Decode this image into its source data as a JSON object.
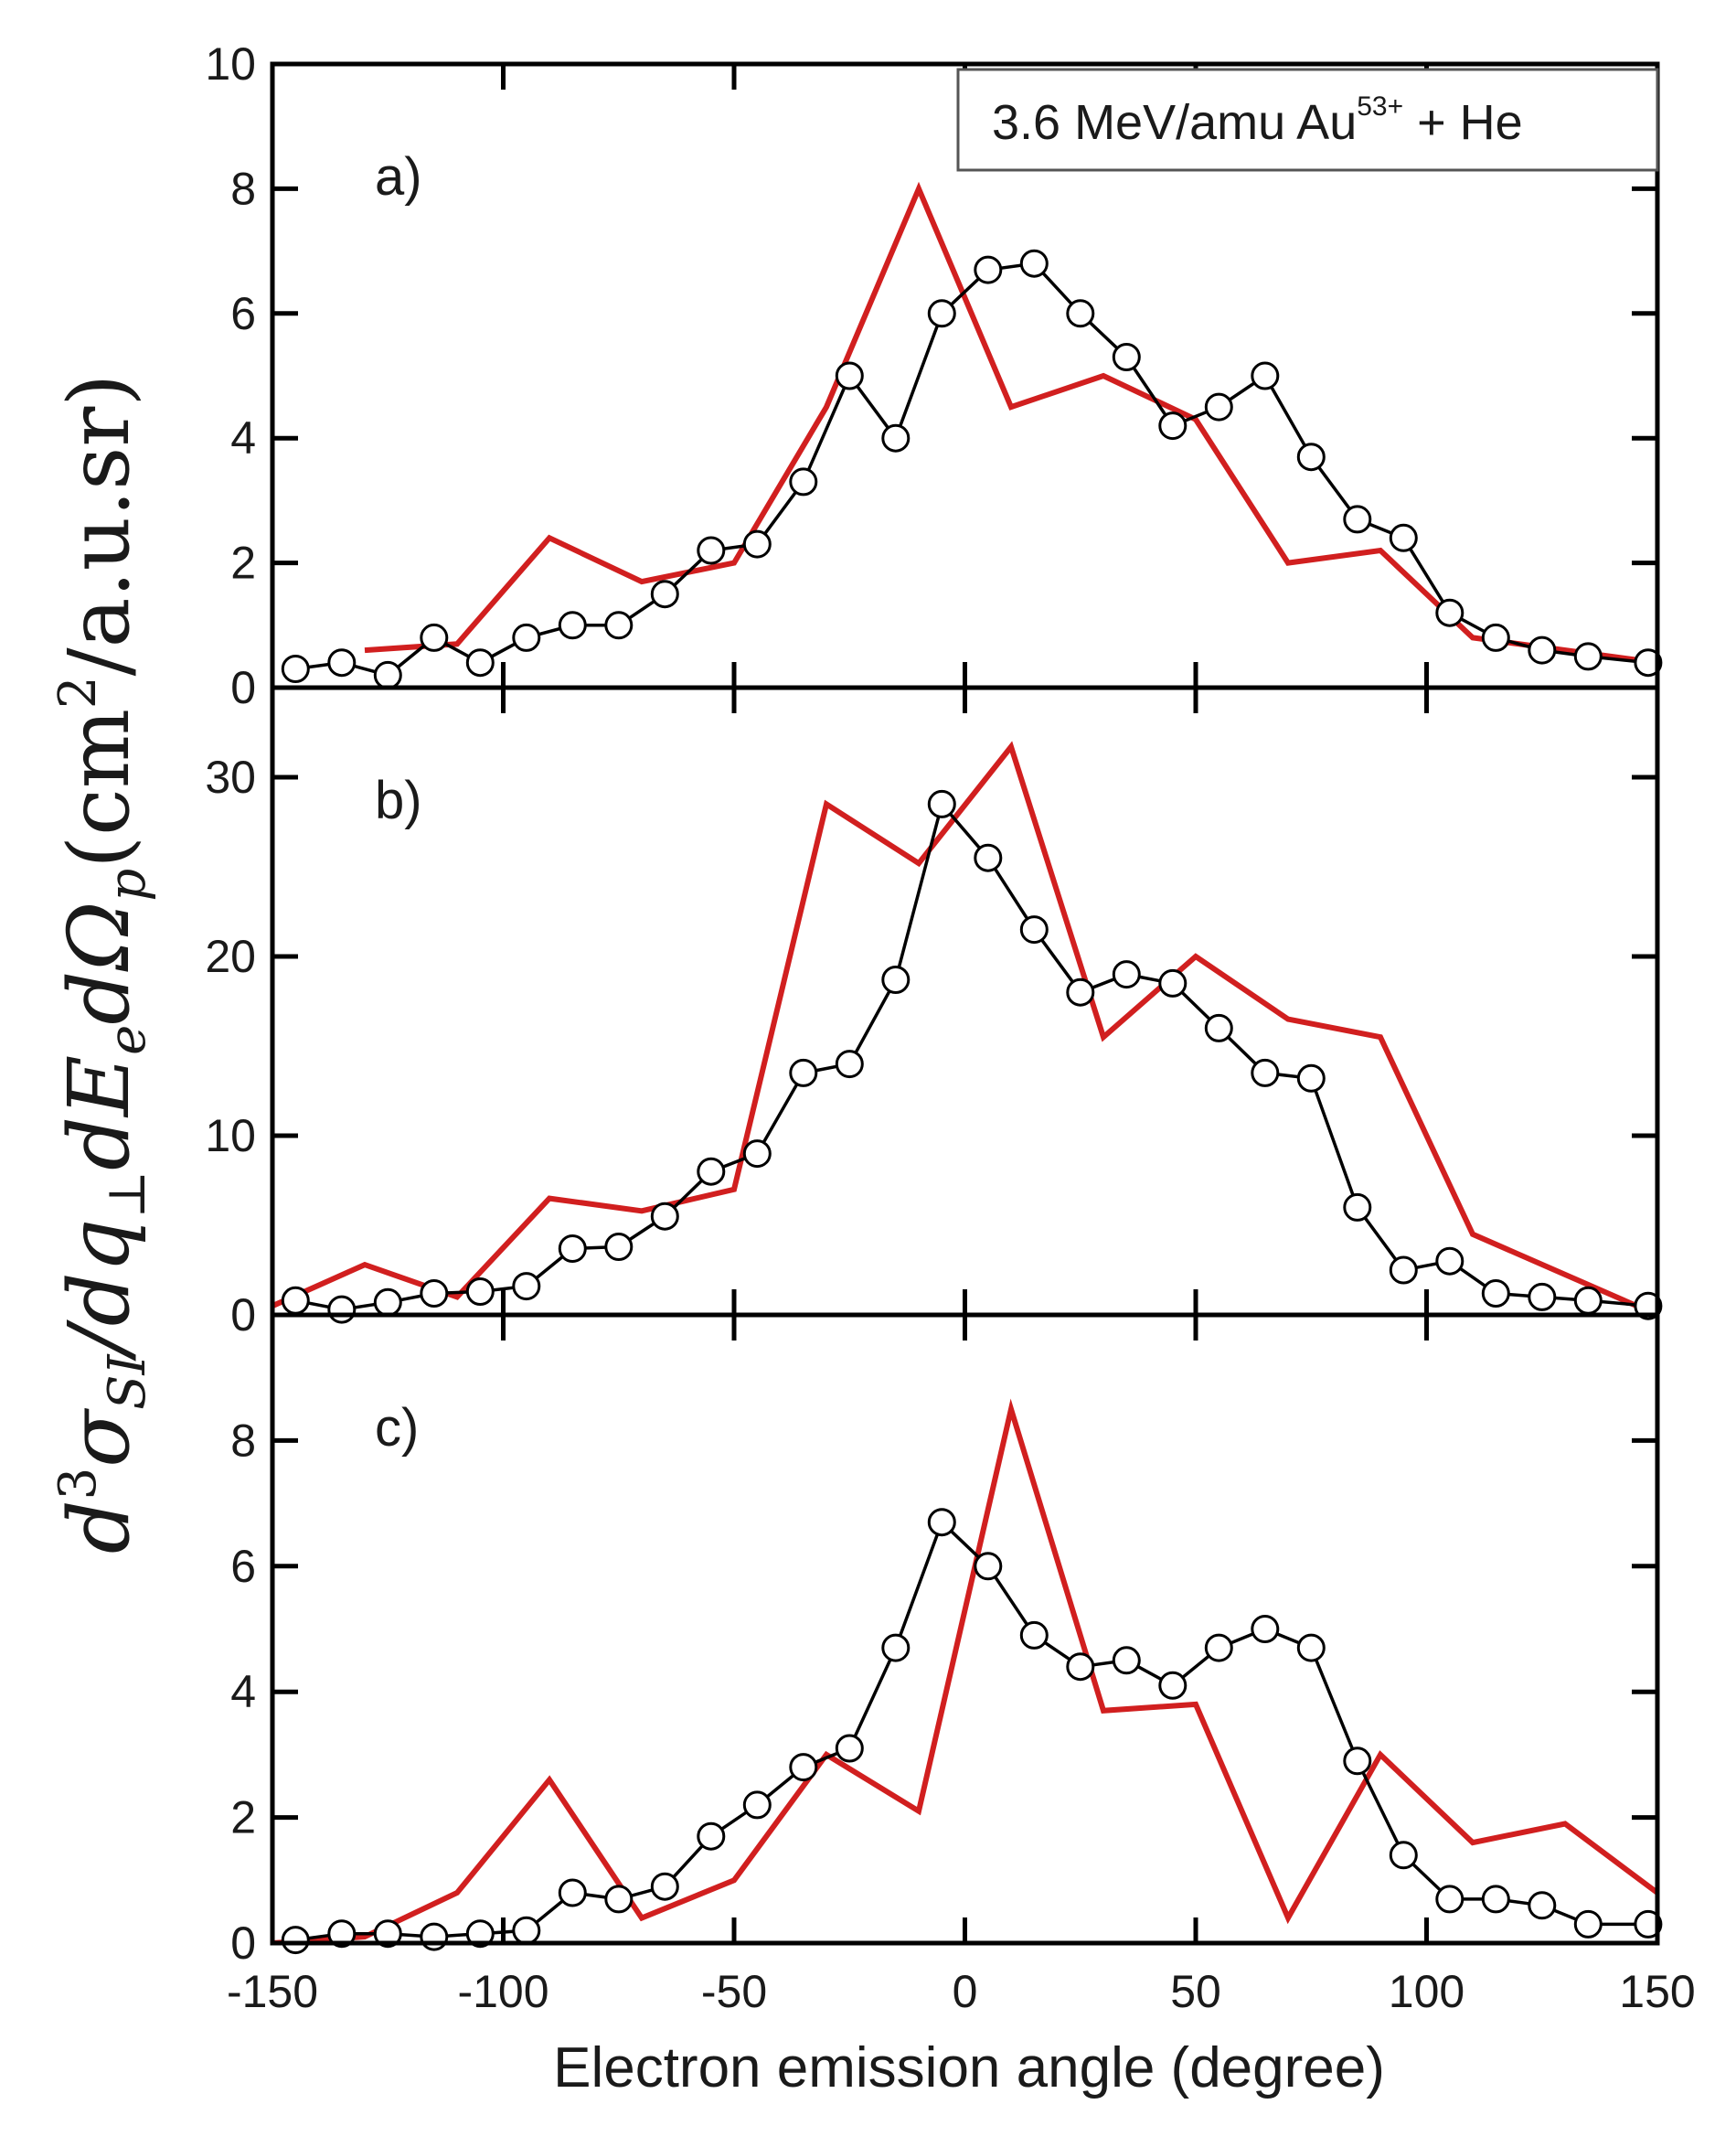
{
  "chart_data": {
    "type": "line",
    "xlabel": "Electron emission angle (degree)",
    "ylabel_parts": {
      "d": "d",
      "exp3": "3",
      "sigma": "σ",
      "si": "SI",
      "over": "/dq",
      "perp": "⊥",
      "dE": "dE",
      "e": "e",
      "dOmega": "dΩ",
      "p": "p",
      "open": "(cm",
      "exp2": "2",
      "close": "/a.u.sr)"
    },
    "legend": {
      "text": "3.6 MeV/amu Au",
      "superscript": "53+",
      "suffix": " + He"
    },
    "xlim": [
      -150,
      150
    ],
    "xticks": [
      -150,
      -100,
      -50,
      0,
      50,
      100,
      150
    ],
    "colors": {
      "experiment": "#000000",
      "theory": "#d11f1f"
    },
    "panels": [
      {
        "label": "a)",
        "ylim": [
          0,
          10
        ],
        "yticks": [
          0,
          2,
          4,
          6,
          8,
          10
        ],
        "experiment": {
          "x": [
            -145,
            -135,
            -125,
            -115,
            -105,
            -95,
            -85,
            -75,
            -65,
            -55,
            -45,
            -35,
            -25,
            -15,
            -5,
            5,
            15,
            25,
            35,
            45,
            55,
            65,
            75,
            85,
            95,
            105,
            115,
            125,
            135,
            148
          ],
          "y": [
            0.3,
            0.4,
            0.2,
            0.8,
            0.4,
            0.8,
            1.0,
            1.0,
            1.5,
            2.2,
            2.3,
            3.3,
            5.0,
            4.0,
            6.0,
            6.7,
            6.8,
            6.0,
            5.3,
            4.2,
            4.5,
            5.0,
            3.7,
            2.7,
            2.4,
            1.2,
            0.8,
            0.6,
            0.5,
            0.4
          ]
        },
        "theory": {
          "x": [
            -130,
            -110,
            -90,
            -70,
            -50,
            -30,
            -10,
            10,
            30,
            50,
            70,
            90,
            110,
            150
          ],
          "y": [
            0.6,
            0.7,
            2.4,
            1.7,
            2.0,
            4.5,
            8.0,
            4.5,
            5.0,
            4.3,
            2.0,
            2.2,
            0.8,
            0.4
          ]
        }
      },
      {
        "label": "b)",
        "ylim": [
          0,
          35
        ],
        "yticks": [
          0,
          10,
          20,
          30
        ],
        "experiment": {
          "x": [
            -145,
            -135,
            -125,
            -115,
            -105,
            -95,
            -85,
            -75,
            -65,
            -55,
            -45,
            -35,
            -25,
            -15,
            -5,
            5,
            15,
            25,
            35,
            45,
            55,
            65,
            75,
            85,
            95,
            105,
            115,
            125,
            135,
            148
          ],
          "y": [
            0.8,
            0.3,
            0.7,
            1.2,
            1.3,
            1.6,
            3.7,
            3.8,
            5.5,
            8.0,
            9.0,
            13.5,
            14.0,
            18.7,
            28.5,
            25.5,
            21.5,
            18.0,
            19.0,
            18.5,
            16.0,
            13.5,
            13.2,
            6.0,
            2.5,
            3.0,
            1.2,
            1.0,
            0.8,
            0.5
          ]
        },
        "theory": {
          "x": [
            -150,
            -130,
            -110,
            -90,
            -70,
            -50,
            -30,
            -10,
            10,
            30,
            50,
            70,
            90,
            110,
            150
          ],
          "y": [
            0.5,
            2.8,
            1.0,
            6.5,
            5.8,
            7.0,
            28.5,
            25.2,
            31.7,
            15.5,
            20.0,
            16.5,
            15.5,
            4.5,
            0.0
          ]
        }
      },
      {
        "label": "c)",
        "ylim": [
          0,
          10
        ],
        "yticks": [
          0,
          2,
          4,
          6,
          8
        ],
        "experiment": {
          "x": [
            -145,
            -135,
            -125,
            -115,
            -105,
            -95,
            -85,
            -75,
            -65,
            -55,
            -45,
            -35,
            -25,
            -15,
            -5,
            5,
            15,
            25,
            35,
            45,
            55,
            65,
            75,
            85,
            95,
            105,
            115,
            125,
            135,
            148
          ],
          "y": [
            0.05,
            0.15,
            0.15,
            0.1,
            0.15,
            0.2,
            0.8,
            0.7,
            0.9,
            1.7,
            2.2,
            2.8,
            3.1,
            4.7,
            6.7,
            6.0,
            4.9,
            4.4,
            4.5,
            4.1,
            4.7,
            5.0,
            4.7,
            2.9,
            1.4,
            0.7,
            0.7,
            0.6,
            0.3,
            0.3
          ]
        },
        "theory": {
          "x": [
            -150,
            -130,
            -110,
            -90,
            -70,
            -50,
            -30,
            -10,
            10,
            30,
            50,
            70,
            90,
            110,
            130,
            150
          ],
          "y": [
            0.0,
            0.1,
            0.8,
            2.6,
            0.4,
            1.0,
            3.0,
            2.1,
            8.5,
            3.7,
            3.8,
            0.4,
            3.0,
            1.6,
            1.9,
            0.8
          ]
        }
      }
    ]
  }
}
